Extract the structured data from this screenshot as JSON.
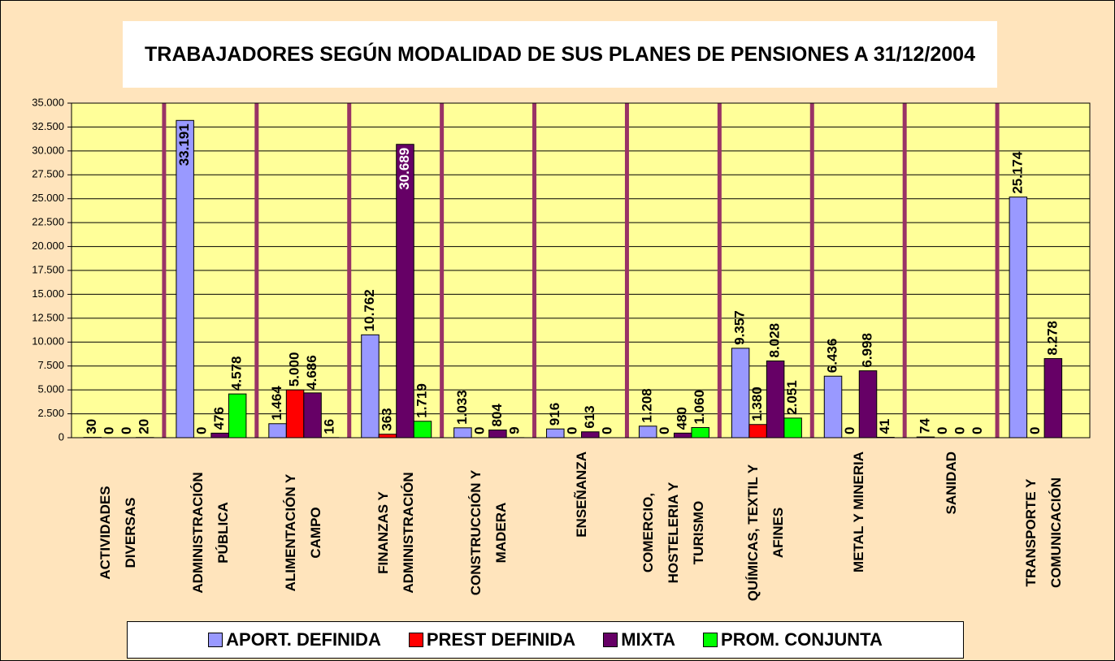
{
  "chart_data": {
    "type": "bar",
    "title": "TRABAJADORES SEGÚN MODALIDAD DE SUS PLANES DE PENSIONES A 31/12/2004",
    "categories": [
      "ACTIVIDADES DIVERSAS",
      "ADMINISTRACIÓN PÚBLICA",
      "ALIMENTACIÓN Y CAMPO",
      "FINANZAS Y ADMINISTRACIÓN",
      "CONSTRUCCIÓN Y MADERA",
      "ENSEÑANZA",
      "COMERCIO, HOSTELERIA Y TURISMO",
      "QUÍMICAS, TEXTIL Y AFINES",
      "METAL Y MINERIA",
      "SANIDAD",
      "TRANSPORTE Y COMUNICACIÓN"
    ],
    "series": [
      {
        "name": "APORT. DEFINIDA",
        "color": "#9999FF",
        "values": [
          30,
          33191,
          1464,
          10762,
          1033,
          916,
          1208,
          9357,
          6436,
          74,
          25174
        ],
        "value_labels": [
          "30",
          "33.191",
          "1.464",
          "10.762",
          "1.033",
          "916",
          "1.208",
          "9.357",
          "6.436",
          "74",
          "25.174"
        ]
      },
      {
        "name": "PREST DEFINIDA",
        "color": "#FF0000",
        "values": [
          0,
          0,
          5000,
          363,
          0,
          0,
          0,
          1380,
          0,
          0,
          0
        ],
        "value_labels": [
          "0",
          "0",
          "5.000",
          "363",
          "0",
          "0",
          "0",
          "1.380",
          "0",
          "0",
          "0"
        ]
      },
      {
        "name": "MIXTA",
        "color": "#660066",
        "values": [
          0,
          476,
          4686,
          30689,
          804,
          613,
          480,
          8028,
          6998,
          0,
          8278
        ],
        "value_labels": [
          "0",
          "476",
          "4.686",
          "30.689",
          "804",
          "613",
          "480",
          "8.028",
          "6.998",
          "0",
          "8.278"
        ]
      },
      {
        "name": "PROM. CONJUNTA",
        "color": "#00FF00",
        "values": [
          20,
          4578,
          16,
          1719,
          9,
          0,
          1060,
          2051,
          41,
          0,
          null
        ],
        "value_labels": [
          "20",
          "4.578",
          "16",
          "1.719",
          "9",
          "0",
          "1.060",
          "2.051",
          "41",
          "0",
          null
        ]
      }
    ],
    "ylim": [
      0,
      35000
    ],
    "yticks": [
      0,
      {
        "value": 2500,
        "label": "2.500"
      },
      {
        "value": 5000,
        "label": "5.000"
      },
      {
        "value": 7500,
        "label": "7.500"
      },
      {
        "value": 10000,
        "label": "10.000"
      },
      {
        "value": 12500,
        "label": "12.500"
      },
      {
        "value": 15000,
        "label": "15.000"
      },
      {
        "value": 17500,
        "label": "17.500"
      },
      {
        "value": 20000,
        "label": "20.000"
      },
      {
        "value": 22500,
        "label": "22.500"
      },
      {
        "value": 25000,
        "label": "25.000"
      },
      {
        "value": 27500,
        "label": "27.500"
      },
      {
        "value": 30000,
        "label": "30.000"
      },
      {
        "value": 32500,
        "label": "32.500"
      },
      {
        "value": 35000,
        "label": "35.000"
      }
    ],
    "grid": true
  }
}
